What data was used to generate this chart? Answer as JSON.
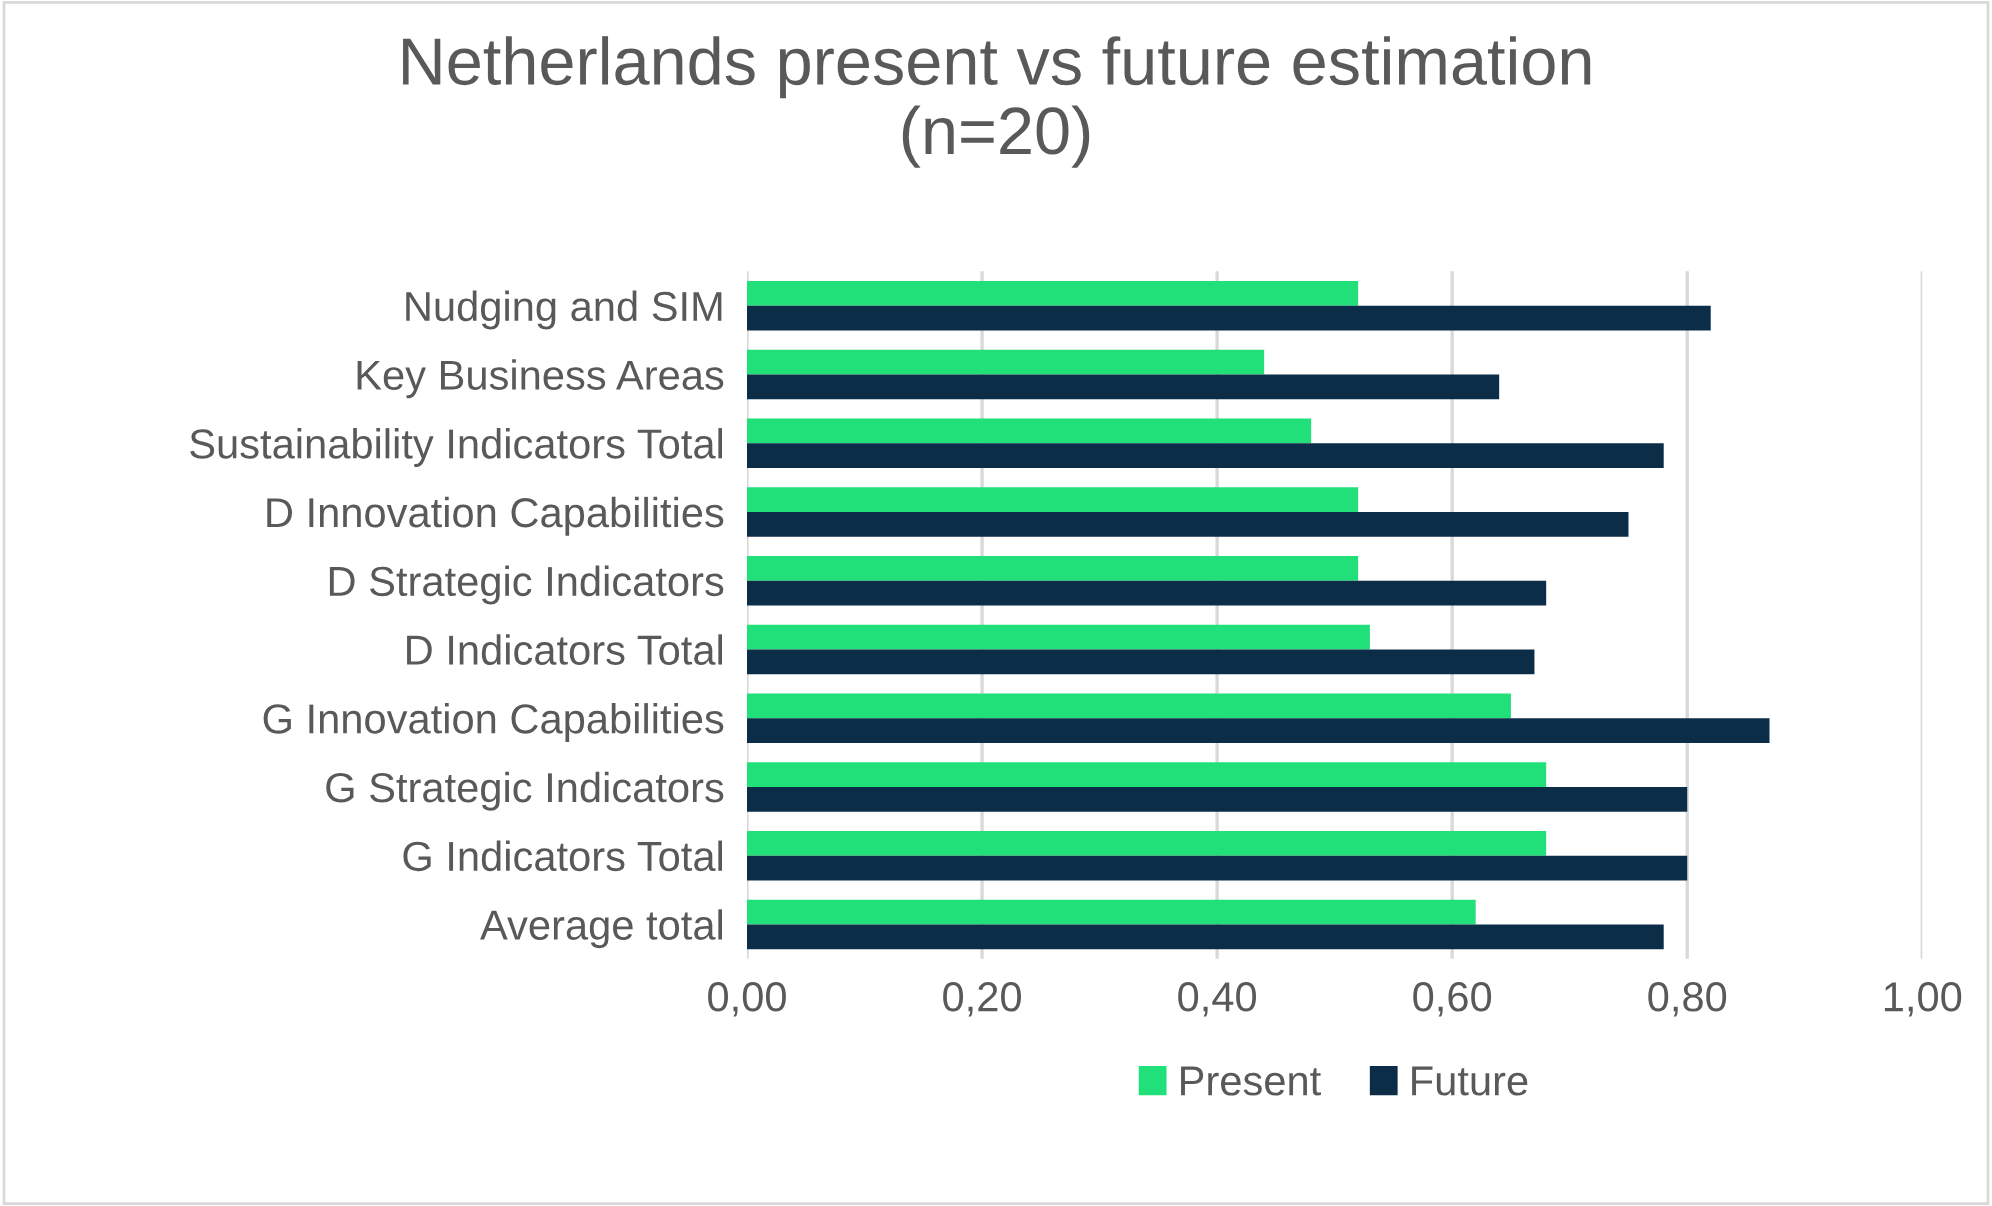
{
  "chart_data": {
    "type": "bar",
    "orientation": "horizontal",
    "title": "Netherlands present vs future estimation\n(n=20)",
    "categories": [
      "Nudging and SIM",
      "Key Business Areas",
      "Sustainability Indicators Total",
      "D Innovation Capabilities",
      "D Strategic Indicators",
      "D Indicators Total",
      "G Innovation Capabilities",
      "G Strategic Indicators",
      "G Indicators Total",
      "Average total"
    ],
    "series": [
      {
        "name": "Present",
        "color": "#21e07a",
        "values": [
          0.52,
          0.44,
          0.48,
          0.52,
          0.52,
          0.53,
          0.65,
          0.68,
          0.68,
          0.62
        ]
      },
      {
        "name": "Future",
        "color": "#0c2d48",
        "values": [
          0.82,
          0.64,
          0.78,
          0.75,
          0.68,
          0.67,
          0.87,
          0.8,
          0.8,
          0.78
        ]
      }
    ],
    "xlim": [
      0,
      1
    ],
    "xticks": [
      {
        "value": 0,
        "label": "0,00"
      },
      {
        "value": 0.2,
        "label": "0,20"
      },
      {
        "value": 0.4,
        "label": "0,40"
      },
      {
        "value": 0.6,
        "label": "0,60"
      },
      {
        "value": 0.8,
        "label": "0,80"
      },
      {
        "value": 1,
        "label": "1,00"
      }
    ],
    "grid": "x",
    "legend": "bottom"
  }
}
